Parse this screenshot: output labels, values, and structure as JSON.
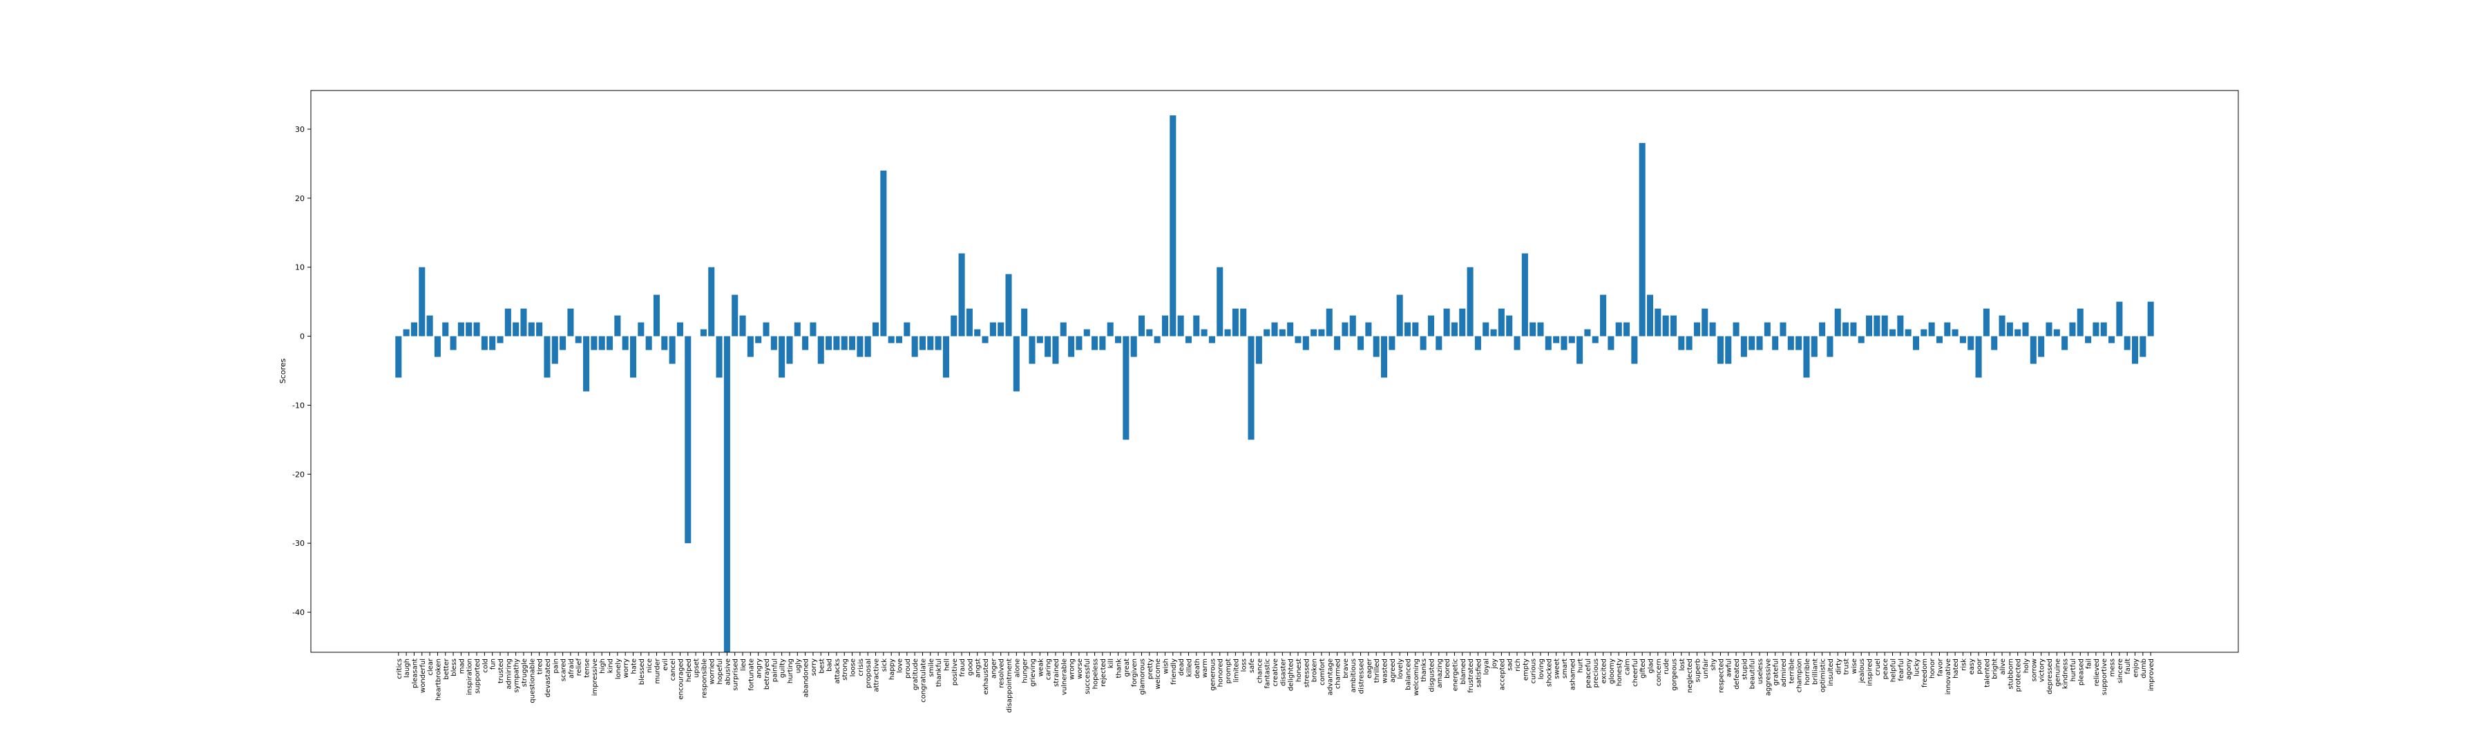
{
  "chart_data": {
    "type": "bar",
    "ylabel": "Scores",
    "color": "#1f77b4",
    "categories": [
      "critics",
      "laugh",
      "pleasant",
      "wonderful",
      "clear",
      "heartbroken",
      "better",
      "bless",
      "mad",
      "inspiration",
      "supported",
      "cold",
      "fun",
      "trusted",
      "admiring",
      "sympathy",
      "struggle",
      "questionable",
      "tired",
      "devastated",
      "pain",
      "scared",
      "afraid",
      "relief",
      "tense",
      "impressive",
      "high",
      "kind",
      "lonely",
      "worry",
      "hate",
      "blessed",
      "nice",
      "murder",
      "evil",
      "cancel",
      "encouraged",
      "helped",
      "upset",
      "responsible",
      "worried",
      "hopeful",
      "abusive",
      "surprised",
      "lied",
      "fortunate",
      "angry",
      "betrayed",
      "painful",
      "guilty",
      "hurting",
      "ugly",
      "abandoned",
      "sorry",
      "best",
      "bad",
      "attacks",
      "strong",
      "loose",
      "crisis",
      "proposal",
      "attractive",
      "sick",
      "happy",
      "love",
      "proud",
      "gratitude",
      "congratulate",
      "smile",
      "thankful",
      "hell",
      "positive",
      "fraud",
      "good",
      "angst",
      "exhausted",
      "anger",
      "resolved",
      "disappointment",
      "alone",
      "hunger",
      "grieving",
      "weak",
      "caring",
      "strained",
      "vulnerable",
      "wrong",
      "worse",
      "successful",
      "hopeless",
      "rejected",
      "kill",
      "thank",
      "great",
      "forgiven",
      "glamorous",
      "pretty",
      "welcome",
      "wish",
      "friendly",
      "dead",
      "killed",
      "death",
      "warm",
      "generous",
      "honored",
      "prompt",
      "limited",
      "loss",
      "safe",
      "chance",
      "fantastic",
      "creative",
      "disaster",
      "delighted",
      "honest",
      "stressed",
      "broken",
      "comfort",
      "advantage",
      "charmed",
      "brave",
      "ambitious",
      "distressed",
      "eager",
      "thrilled",
      "wasted",
      "agreed",
      "lovely",
      "balanced",
      "welcoming",
      "thanks",
      "disgusted",
      "amazing",
      "bored",
      "energetic",
      "blamed",
      "frustrated",
      "satisfied",
      "loyal",
      "joy",
      "accepted",
      "sad",
      "rich",
      "empty",
      "curious",
      "loving",
      "shocked",
      "sweet",
      "smart",
      "ashamed",
      "hurt",
      "peaceful",
      "precious",
      "excited",
      "gloomy",
      "honesty",
      "calm",
      "cheerful",
      "gifted",
      "glad",
      "concern",
      "rude",
      "gorgeous",
      "lost",
      "neglected",
      "superb",
      "unfair",
      "shy",
      "respected",
      "awful",
      "defeated",
      "stupid",
      "beautiful",
      "useless",
      "aggressive",
      "grateful",
      "admired",
      "terrible",
      "champion",
      "horrible",
      "brilliant",
      "optimistic",
      "insulted",
      "dirty",
      "trust",
      "wise",
      "jealous",
      "inspired",
      "cruel",
      "peace",
      "helpful",
      "fearful",
      "agony",
      "lucky",
      "freedom",
      "honor",
      "favor",
      "innovative",
      "hated",
      "risk",
      "easy",
      "poor",
      "talented",
      "bright",
      "alive",
      "stubborn",
      "protected",
      "holy",
      "sorrow",
      "victory",
      "depressed",
      "genuine",
      "kindness",
      "hurtful",
      "pleased",
      "fail",
      "relieved",
      "supportive",
      "mess",
      "sincere",
      "fault",
      "enjoy",
      "dumb",
      "improved"
    ],
    "values": [
      -6,
      1,
      2,
      10,
      3,
      -3,
      2,
      -2,
      2,
      2,
      2,
      -2,
      -2,
      -1,
      4,
      2,
      4,
      2,
      2,
      -6,
      -4,
      -2,
      4,
      -1,
      -8,
      -2,
      -2,
      -2,
      3,
      -2,
      -6,
      2,
      -2,
      6,
      -2,
      -4,
      2,
      -30,
      0,
      1,
      10,
      -6,
      -46,
      6,
      3,
      -3,
      -1,
      2,
      -2,
      -6,
      -4,
      2,
      -2,
      2,
      -4,
      -2,
      -2,
      -2,
      -2,
      -3,
      -3,
      2,
      24,
      -1,
      -1,
      2,
      -3,
      -2,
      -2,
      -2,
      -6,
      3,
      12,
      4,
      1,
      -1,
      2,
      2,
      9,
      -8,
      4,
      -4,
      -1,
      -3,
      -4,
      2,
      -3,
      -2,
      1,
      -2,
      -2,
      2,
      -1,
      -15,
      -3,
      3,
      1,
      -1,
      3,
      32,
      3,
      -1,
      3,
      1,
      -1,
      10,
      1,
      4,
      4,
      -15,
      -4,
      1,
      2,
      1,
      2,
      -1,
      -2,
      1,
      1,
      4,
      -2,
      2,
      3,
      -2,
      2,
      -3,
      -6,
      -2,
      6,
      2,
      2,
      -2,
      3,
      -2,
      4,
      2,
      4,
      10,
      -2,
      2,
      1,
      4,
      3,
      -2,
      12,
      2,
      2,
      -2,
      -1,
      -2,
      -1,
      -4,
      1,
      -1,
      6,
      -2,
      2,
      2,
      -4,
      28,
      6,
      4,
      3,
      3,
      -2,
      -2,
      2,
      4,
      2,
      -4,
      -4,
      2,
      -3,
      -2,
      -2,
      2,
      -2,
      2,
      -2,
      -2,
      -6,
      -3,
      2,
      -3,
      4,
      2,
      2,
      -1,
      3,
      3,
      3,
      1,
      3,
      1,
      -2,
      1,
      2,
      -1,
      2,
      1,
      -1,
      -2,
      -6,
      4,
      -2,
      3,
      2,
      1,
      2,
      -4,
      -3,
      2,
      1,
      -2,
      2,
      4,
      -1,
      2,
      2,
      -1,
      5,
      -2,
      -4,
      -3,
      5
    ],
    "ylim": [
      -45.8,
      35.6
    ],
    "yticks": [
      -40,
      -30,
      -20,
      -10,
      0,
      10,
      20,
      30
    ]
  }
}
